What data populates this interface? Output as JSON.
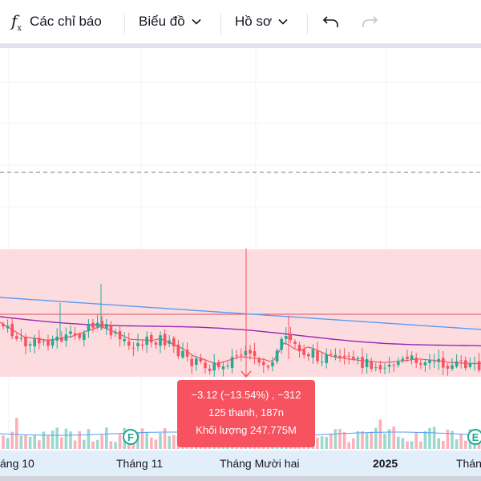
{
  "toolbar": {
    "indicators_label": "Các chỉ báo",
    "chart_label": "Biểu đồ",
    "profile_label": "Hồ sơ"
  },
  "tooltip": {
    "line1": "−3.12 (−13.54%) , −312",
    "line2": "125 thanh, 187n",
    "line3": "Khối lượng 247.775M"
  },
  "markers": {
    "earnings_1": "F",
    "earnings_2": "E"
  },
  "timeaxis": {
    "labels": [
      "áng 10",
      "Tháng 11",
      "Tháng Mười hai",
      "2025",
      "Tháng"
    ]
  },
  "colors": {
    "up": "#22ab94",
    "down": "#f7525f",
    "range_fill": "#fcdcdf",
    "ma_fast": "#f7525f",
    "ma_mid": "#9c27b0",
    "ma_slow": "#5b9cf6",
    "axis_bg": "#e3eefb"
  }
}
